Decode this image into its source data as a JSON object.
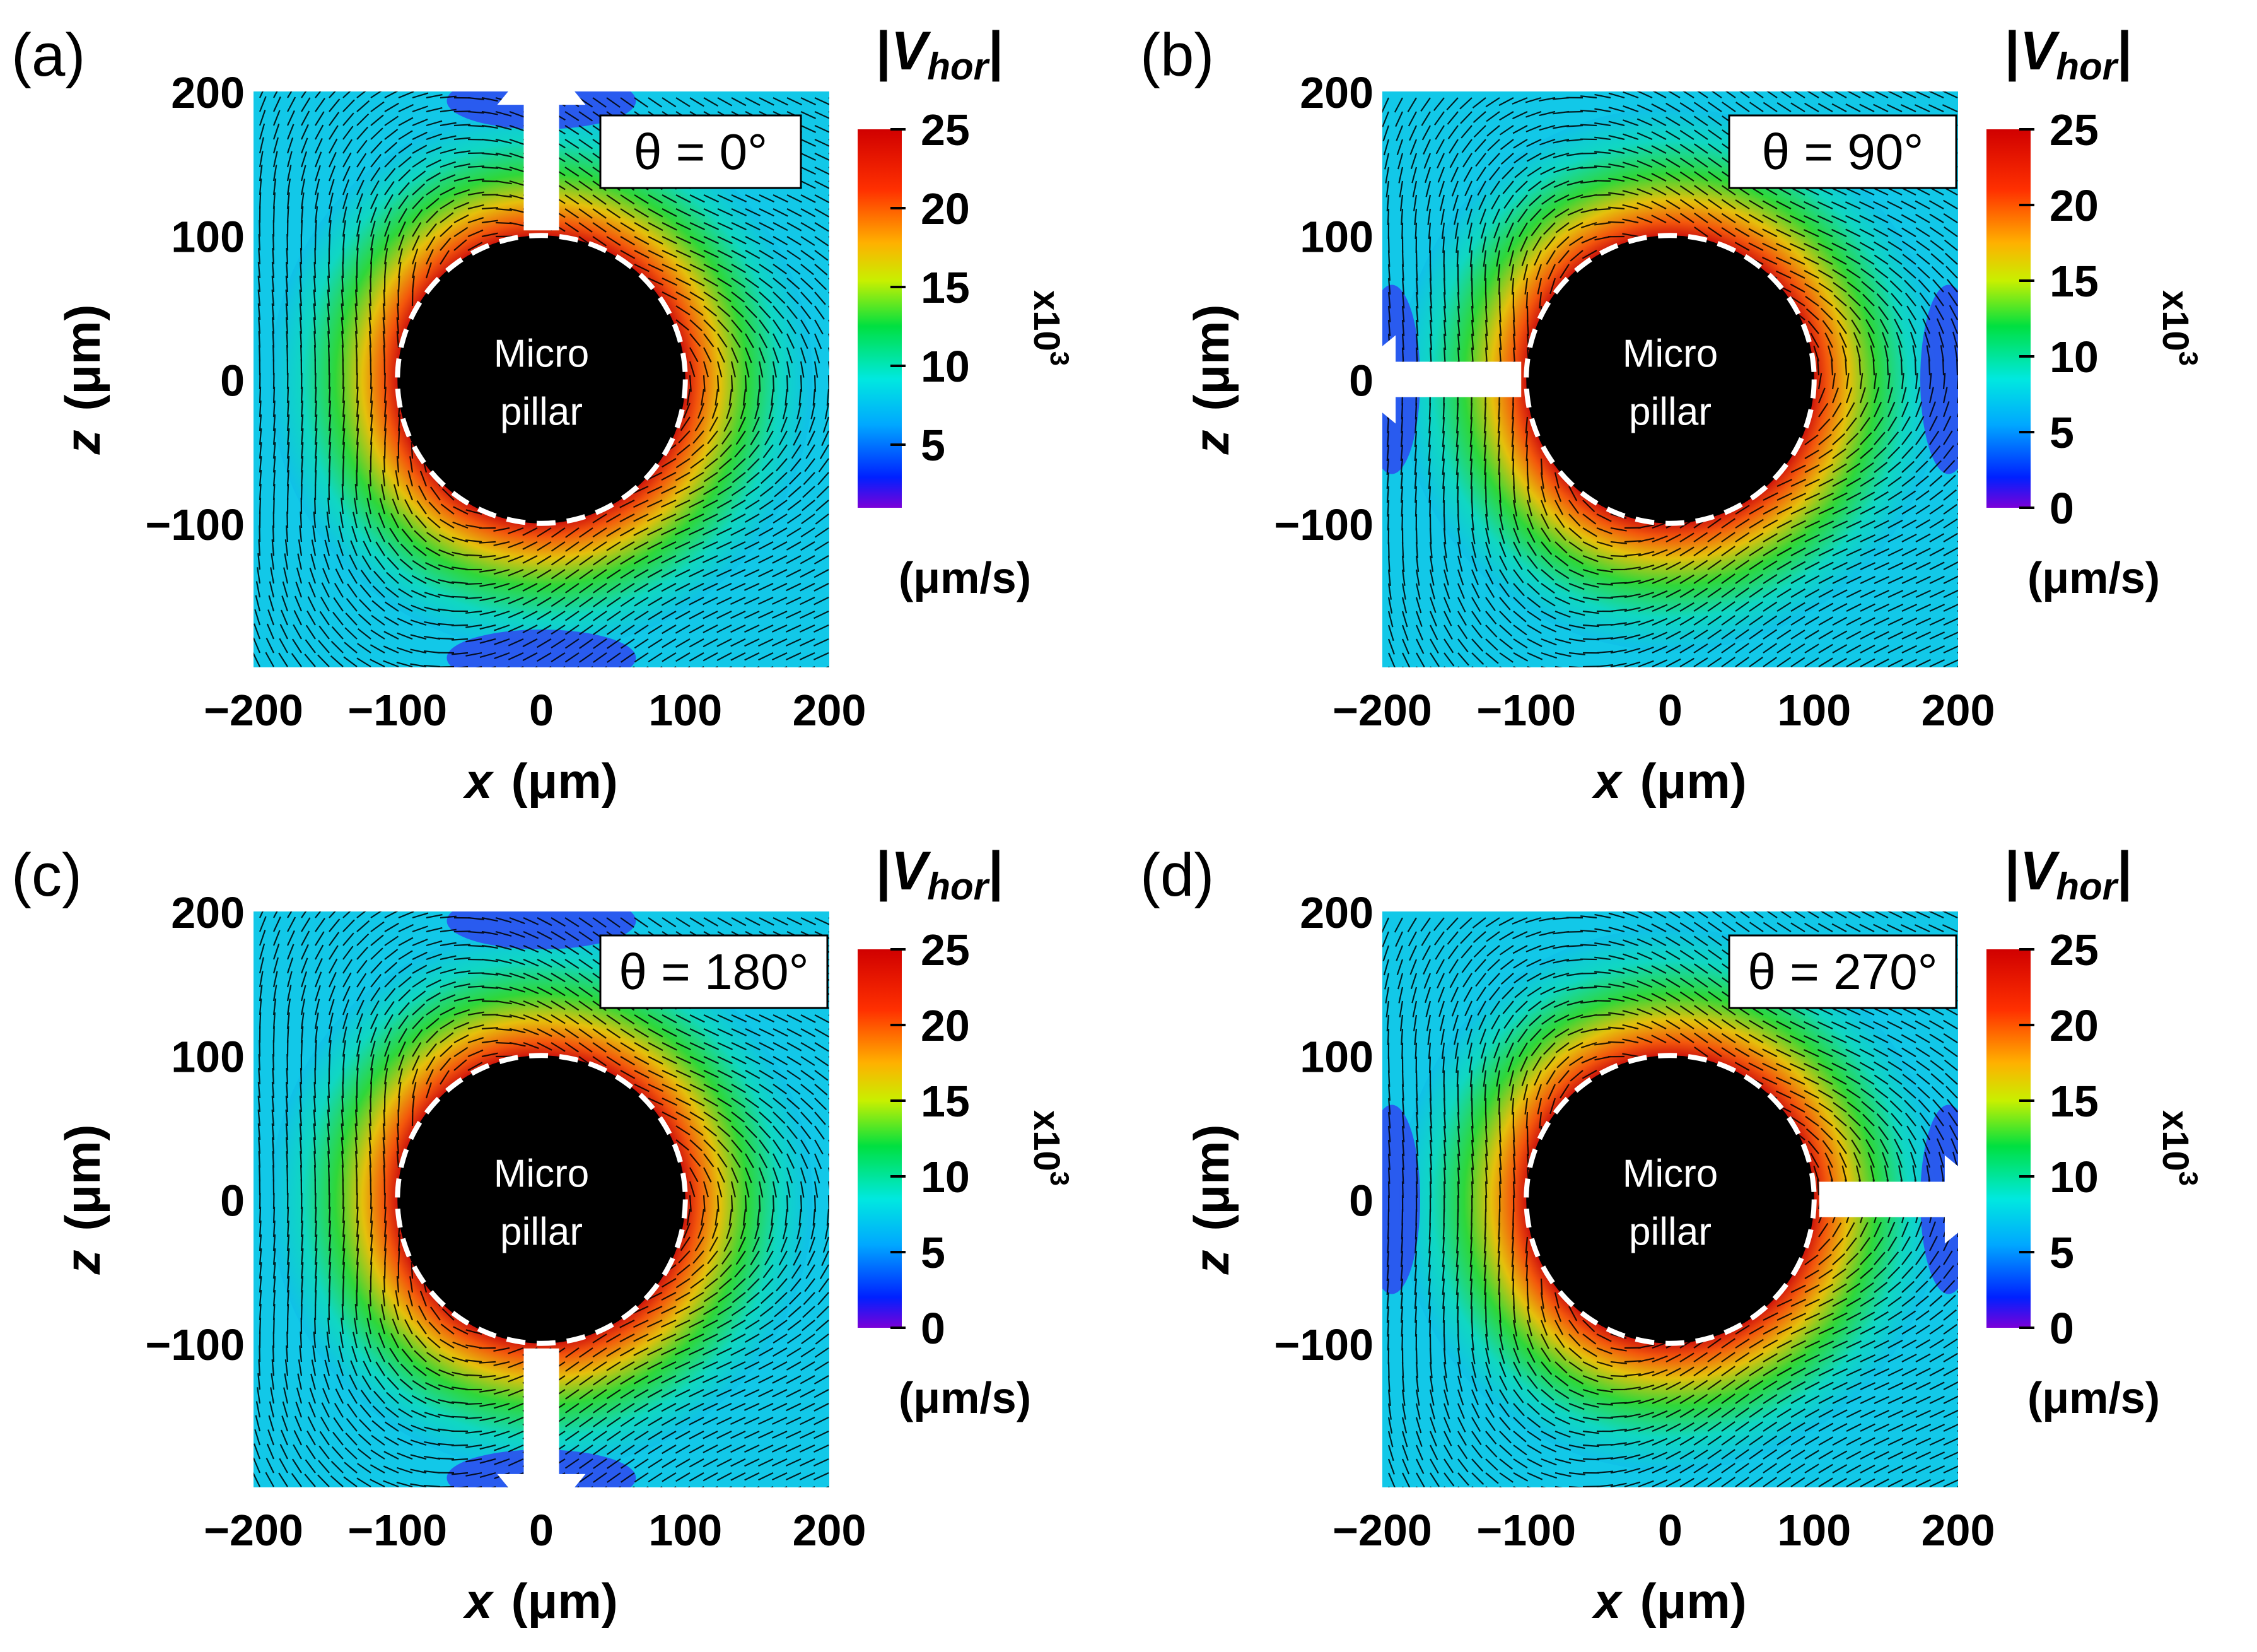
{
  "chart_data": [
    {
      "type": "heatmap",
      "panel_label": "(a)",
      "theta": "θ = 0°",
      "angle_deg": 0,
      "xlabel_var": "x",
      "xlabel_unit": "(μm)",
      "ylabel_var": "z",
      "ylabel_unit": "(μm)",
      "xlim": [
        -200,
        200
      ],
      "ylim": [
        -200,
        200
      ],
      "xticks": [
        -200,
        -100,
        0,
        100,
        200
      ],
      "yticks": [
        -100,
        0,
        100,
        200
      ],
      "xtick_labels": [
        "−200",
        "−100",
        "0",
        "100",
        "200"
      ],
      "ytick_labels": [
        "−100",
        "0",
        "100",
        "200"
      ],
      "pillar_label_1": "Micro",
      "pillar_label_2": "pillar",
      "pillar_radius": 100,
      "colorbar": {
        "title_prefix": "|",
        "title_var": "V",
        "title_sub": "hor",
        "title_suffix": "|",
        "ticks": [
          5,
          10,
          15,
          20,
          25
        ],
        "tick_labels": [
          "5",
          "10",
          "15",
          "20",
          "25"
        ],
        "multiplier": "x10",
        "multiplier_exp": "3",
        "unit": "(μm/s)",
        "range": [
          1,
          25
        ]
      }
    },
    {
      "type": "heatmap",
      "panel_label": "(b)",
      "theta": "θ = 90°",
      "angle_deg": 90,
      "xlabel_var": "x",
      "xlabel_unit": "(μm)",
      "ylabel_var": "z",
      "ylabel_unit": "(μm)",
      "xlim": [
        -200,
        200
      ],
      "ylim": [
        -200,
        200
      ],
      "xticks": [
        -200,
        -100,
        0,
        100,
        200
      ],
      "yticks": [
        -100,
        0,
        100,
        200
      ],
      "xtick_labels": [
        "−200",
        "−100",
        "0",
        "100",
        "200"
      ],
      "ytick_labels": [
        "−100",
        "0",
        "100",
        "200"
      ],
      "pillar_label_1": "Micro",
      "pillar_label_2": "pillar",
      "pillar_radius": 100,
      "colorbar": {
        "title_prefix": "|",
        "title_var": "V",
        "title_sub": "hor",
        "title_suffix": "|",
        "ticks": [
          0,
          5,
          10,
          15,
          20,
          25
        ],
        "tick_labels": [
          "0",
          "5",
          "10",
          "15",
          "20",
          "25"
        ],
        "multiplier": "x10",
        "multiplier_exp": "3",
        "unit": "(μm/s)",
        "range": [
          0,
          25
        ]
      }
    },
    {
      "type": "heatmap",
      "panel_label": "(c)",
      "theta": "θ = 180°",
      "angle_deg": 180,
      "xlabel_var": "x",
      "xlabel_unit": "(μm)",
      "ylabel_var": "z",
      "ylabel_unit": "(μm)",
      "xlim": [
        -200,
        200
      ],
      "ylim": [
        -200,
        200
      ],
      "xticks": [
        -200,
        -100,
        0,
        100,
        200
      ],
      "yticks": [
        -100,
        0,
        100,
        200
      ],
      "xtick_labels": [
        "−200",
        "−100",
        "0",
        "100",
        "200"
      ],
      "ytick_labels": [
        "−100",
        "0",
        "100",
        "200"
      ],
      "pillar_label_1": "Micro",
      "pillar_label_2": "pillar",
      "pillar_radius": 100,
      "colorbar": {
        "title_prefix": "|",
        "title_var": "V",
        "title_sub": "hor",
        "title_suffix": "|",
        "ticks": [
          0,
          5,
          10,
          15,
          20,
          25
        ],
        "tick_labels": [
          "0",
          "5",
          "10",
          "15",
          "20",
          "25"
        ],
        "multiplier": "x10",
        "multiplier_exp": "3",
        "unit": "(μm/s)",
        "range": [
          0,
          25
        ]
      }
    },
    {
      "type": "heatmap",
      "panel_label": "(d)",
      "theta": "θ = 270°",
      "angle_deg": 270,
      "xlabel_var": "x",
      "xlabel_unit": "(μm)",
      "ylabel_var": "z",
      "ylabel_unit": "(μm)",
      "xlim": [
        -200,
        200
      ],
      "ylim": [
        -200,
        200
      ],
      "xticks": [
        -200,
        -100,
        0,
        100,
        200
      ],
      "yticks": [
        -100,
        0,
        100,
        200
      ],
      "xtick_labels": [
        "−200",
        "−100",
        "0",
        "100",
        "200"
      ],
      "ytick_labels": [
        "−100",
        "0",
        "100",
        "200"
      ],
      "pillar_label_1": "Micro",
      "pillar_label_2": "pillar",
      "pillar_radius": 100,
      "colorbar": {
        "title_prefix": "|",
        "title_var": "V",
        "title_sub": "hor",
        "title_suffix": "|",
        "ticks": [
          0,
          5,
          10,
          15,
          20,
          25
        ],
        "tick_labels": [
          "0",
          "5",
          "10",
          "15",
          "20",
          "25"
        ],
        "multiplier": "x10",
        "multiplier_exp": "3",
        "unit": "(μm/s)",
        "range": [
          0,
          25
        ]
      }
    }
  ],
  "colors": {
    "colormap": [
      "#7a00d8",
      "#0020ff",
      "#00a8ff",
      "#00e8e0",
      "#00e040",
      "#c8f000",
      "#ffb000",
      "#ff3000",
      "#d00000"
    ],
    "arrow": "#ffffff",
    "pillar": "#000000",
    "vector": "#000000"
  }
}
